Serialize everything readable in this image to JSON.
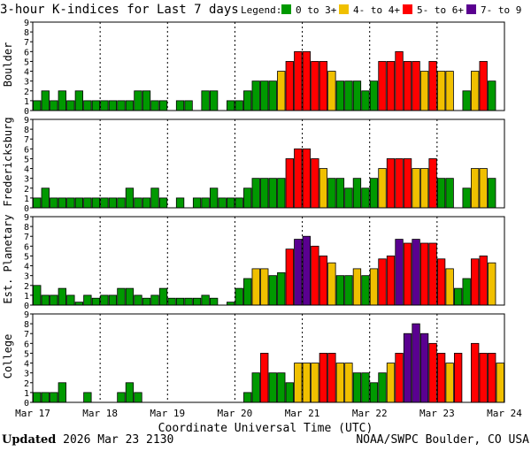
{
  "chart_data": {
    "type": "bar",
    "title": "3-hour K-indices for Last 7 days",
    "legend": {
      "label": "Legend:",
      "items": [
        {
          "label": "0 to 3+",
          "color": "#009900"
        },
        {
          "label": "4- to 4+",
          "color": "#f0c000"
        },
        {
          "label": "5- to 6+",
          "color": "#ff0000"
        },
        {
          "label": "7- to 9",
          "color": "#5a0090"
        }
      ]
    },
    "xlabel": "Coordinate Universal Time (UTC)",
    "x_ticks": [
      "Mar 17",
      "Mar 18",
      "Mar 19",
      "Mar 20",
      "Mar 21",
      "Mar 22",
      "Mar 23",
      "Mar 24"
    ],
    "y_ticks": [
      "0",
      "1",
      "2",
      "3",
      "4",
      "5",
      "6",
      "7",
      "8",
      "9"
    ],
    "ylim": [
      0,
      9
    ],
    "bars_per_day": 8,
    "days": 7,
    "panels": [
      {
        "name": "Boulder",
        "values": [
          1,
          2,
          1,
          2,
          1,
          2,
          1,
          1,
          1,
          1,
          1,
          1,
          2,
          2,
          1,
          1,
          0,
          1,
          1,
          0,
          2,
          2,
          0,
          1,
          1,
          2,
          3,
          3,
          3,
          4,
          5,
          6,
          6,
          5,
          5,
          4,
          3,
          3,
          3,
          2,
          3,
          5,
          5,
          6,
          5,
          5,
          4,
          5,
          4,
          4,
          0,
          2,
          4,
          5,
          3,
          0
        ]
      },
      {
        "name": "Fredericksburg",
        "values": [
          1,
          2,
          1,
          1,
          1,
          1,
          1,
          1,
          1,
          1,
          1,
          2,
          1,
          1,
          2,
          1,
          0,
          1,
          0,
          1,
          1,
          2,
          1,
          1,
          1,
          2,
          3,
          3,
          3,
          3,
          5,
          6,
          6,
          5,
          4,
          3,
          3,
          2,
          3,
          2,
          3,
          4,
          5,
          5,
          5,
          4,
          4,
          5,
          3,
          3,
          0,
          2,
          4,
          4,
          3,
          0
        ]
      },
      {
        "name": "Est. Planetary",
        "values": [
          2,
          1,
          1,
          1.7,
          1,
          0.3,
          1,
          0.7,
          1,
          1,
          1.7,
          1.7,
          1,
          0.7,
          1,
          1.7,
          0.7,
          0.7,
          0.7,
          0.7,
          1,
          0.7,
          0,
          0.3,
          1.7,
          2.7,
          3.7,
          3.7,
          3,
          3.3,
          5.7,
          6.7,
          7,
          6,
          5,
          4.3,
          3,
          3,
          3.7,
          3,
          3.7,
          4.7,
          5,
          6.7,
          6.3,
          6.7,
          6.3,
          6.3,
          4.7,
          3.7,
          1.7,
          2.7,
          4.7,
          5,
          4.3,
          0
        ]
      },
      {
        "name": "College",
        "values": [
          1,
          1,
          1,
          2,
          0,
          0,
          1,
          0,
          0,
          0,
          1,
          2,
          1,
          0,
          0,
          0,
          0,
          0,
          0,
          0,
          0,
          0,
          0,
          0,
          0,
          1,
          3,
          5,
          3,
          3,
          2,
          4,
          4,
          4,
          5,
          5,
          4,
          4,
          3,
          3,
          2,
          3,
          4,
          5,
          7,
          8,
          7,
          6,
          5,
          4,
          5,
          0,
          6,
          5,
          5,
          4
        ]
      }
    ]
  },
  "footer": {
    "updated_label": "Updated",
    "updated_value": "2026 Mar 23 2130",
    "credit": "NOAA/SWPC Boulder, CO USA"
  }
}
